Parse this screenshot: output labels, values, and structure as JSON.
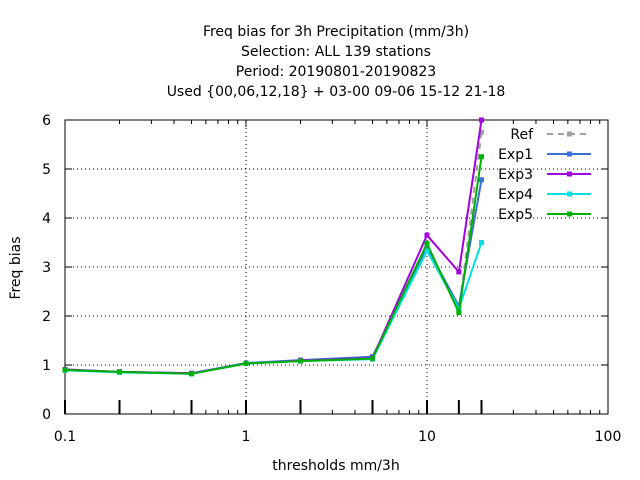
{
  "chart_data": {
    "type": "line",
    "title_lines": [
      "Freq bias  for 3h Precipitation (mm/3h)",
      "Selection: ALL    139 stations",
      "Period: 20190801-20190823",
      "Used {00,06,12,18} + 03-00 09-06 15-12 21-18"
    ],
    "xlabel": "thresholds mm/3h",
    "ylabel": "Freq bias",
    "x_scale": "log",
    "xlim": [
      0.1,
      100
    ],
    "ylim": [
      0,
      6
    ],
    "x_ticks": [
      0.1,
      1,
      10,
      100
    ],
    "x_tick_labels": [
      "0.1",
      "1",
      "10",
      "100"
    ],
    "y_ticks": [
      0,
      1,
      2,
      3,
      4,
      5,
      6
    ],
    "y_tick_labels": [
      "0",
      "1",
      "2",
      "3",
      "4",
      "5",
      "6"
    ],
    "threshold_marks": [
      0.1,
      0.2,
      0.5,
      1,
      2,
      5,
      10,
      15,
      20
    ],
    "grid": true,
    "legend_position": "top-right",
    "x": [
      0.1,
      0.2,
      0.5,
      1,
      2,
      5,
      10,
      15,
      20
    ],
    "series": [
      {
        "name": "Ref",
        "color": "#a0a0a0",
        "dashed": true,
        "values": [
          0.9,
          0.86,
          0.83,
          1.03,
          1.09,
          1.14,
          3.45,
          2.1,
          5.75
        ]
      },
      {
        "name": "Exp1",
        "color": "#3a6fd8",
        "dashed": false,
        "values": [
          0.9,
          0.86,
          0.83,
          1.04,
          1.1,
          1.17,
          3.4,
          2.2,
          4.78
        ]
      },
      {
        "name": "Exp3",
        "color": "#a000e0",
        "dashed": false,
        "values": [
          0.91,
          0.86,
          0.83,
          1.03,
          1.09,
          1.14,
          3.65,
          2.9,
          6.0
        ]
      },
      {
        "name": "Exp4",
        "color": "#00e0e0",
        "dashed": false,
        "values": [
          0.89,
          0.85,
          0.82,
          1.03,
          1.08,
          1.12,
          3.33,
          2.15,
          3.5
        ]
      },
      {
        "name": "Exp5",
        "color": "#00b000",
        "dashed": false,
        "values": [
          0.9,
          0.86,
          0.82,
          1.03,
          1.08,
          1.13,
          3.48,
          2.07,
          5.25
        ]
      }
    ]
  }
}
